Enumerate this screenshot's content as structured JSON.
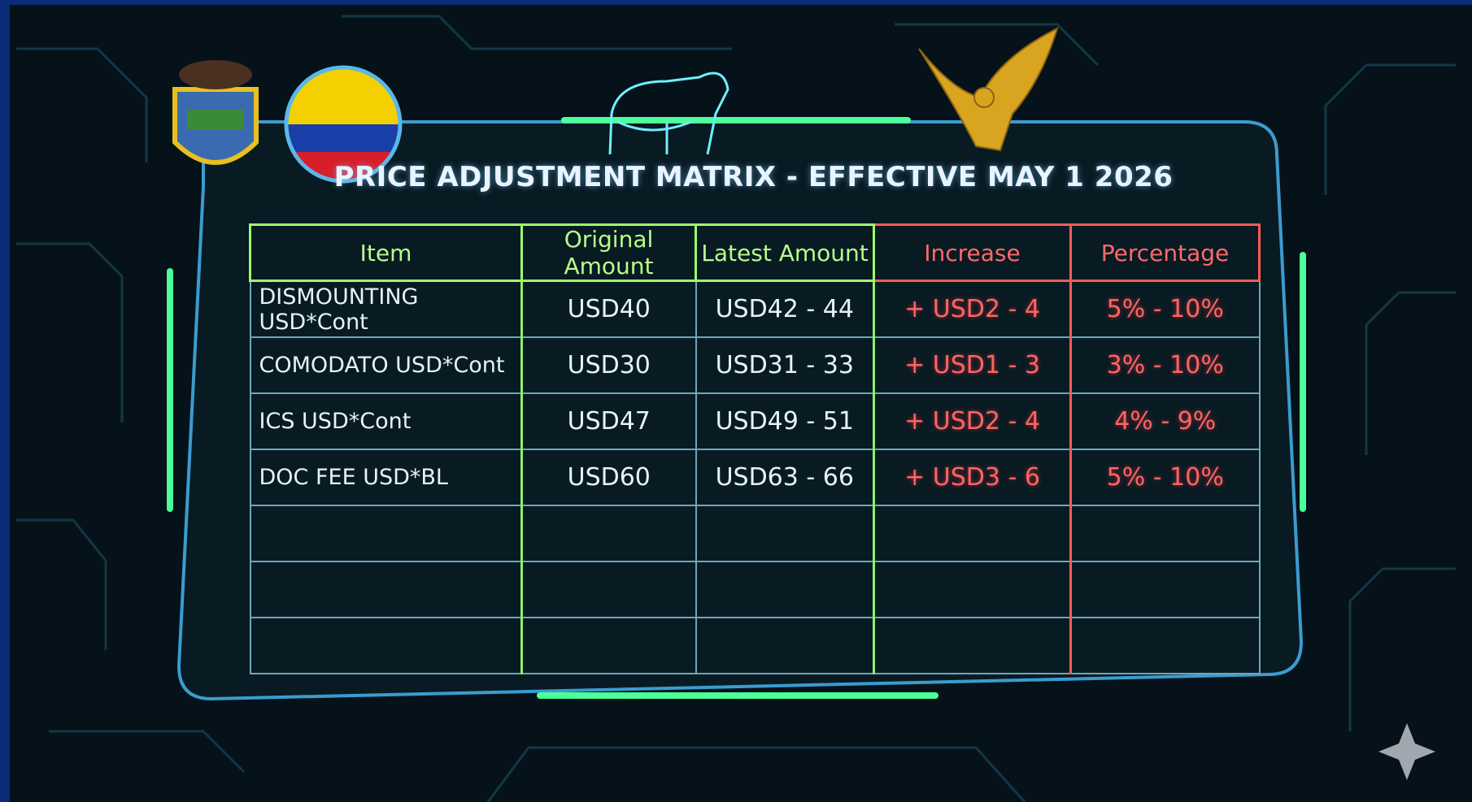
{
  "header": {
    "title": "PRICE ADJUSTMENT MATRIX - EFFECTIVE MAY 1 2026"
  },
  "table": {
    "columns": [
      "Item",
      "Original Amount",
      "Latest Amount",
      "Increase",
      "Percentage"
    ],
    "rows": [
      [
        "DISMOUNTING USD*Cont",
        "USD40",
        "USD42 - 44",
        "+ USD2 - 4",
        "5% - 10%"
      ],
      [
        "COMODATO USD*Cont",
        "USD30",
        "USD31 - 33",
        "+ USD1 - 3",
        "3% - 10%"
      ],
      [
        "ICS USD*Cont",
        "USD47",
        "USD49 - 51",
        "+ USD2 - 4",
        "4% - 9%"
      ],
      [
        "DOC FEE USD*BL",
        "USD60",
        "USD63 - 66",
        "+ USD3 - 6",
        "5% - 10%"
      ]
    ]
  }
}
